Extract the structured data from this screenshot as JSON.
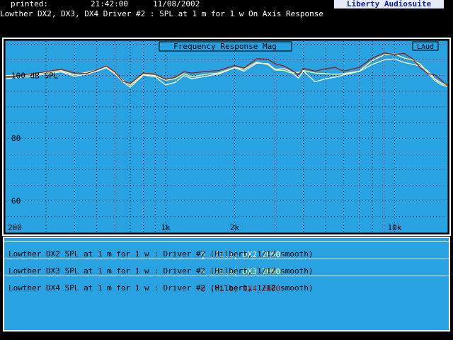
{
  "header": {
    "printed_label": "printed:",
    "time": "21:42:00",
    "date": "11/08/2002",
    "brand": "Liberty Audiosuite",
    "title": "Lowther DX2, DX3, DX4 Driver #2 : SPL at 1 m for 1 w On Axis Response"
  },
  "plot": {
    "title": "Frequency Response Mag",
    "badge": "LAud",
    "y_unit_label": "100 dB SPL"
  },
  "colors": {
    "background": "#000000",
    "plot_bg": "#29a2e2",
    "grid": "#000000",
    "dx2": "#ffffff",
    "dx3": "#ffff80",
    "dx4": "#a01818"
  },
  "chart_data": {
    "type": "line",
    "title": "Frequency Response Mag",
    "xscale": "log",
    "xlim": [
      200,
      17000
    ],
    "ylim": [
      50,
      111
    ],
    "x_tick_labels": [
      {
        "value": 200,
        "label": "200"
      },
      {
        "value": 1000,
        "label": "1k"
      },
      {
        "value": 2000,
        "label": "2k"
      },
      {
        "value": 10000,
        "label": "10k"
      }
    ],
    "y_tick_labels": [
      {
        "value": 100,
        "label": "100 dB SPL"
      },
      {
        "value": 80,
        "label": "80"
      },
      {
        "value": 60,
        "label": "60"
      }
    ],
    "series": [
      {
        "name": "DX2_2H00",
        "color": "#ffffff",
        "x": [
          200,
          250,
          300,
          350,
          400,
          450,
          500,
          550,
          600,
          650,
          700,
          800,
          900,
          1000,
          1100,
          1200,
          1300,
          1500,
          1700,
          2000,
          2200,
          2500,
          2800,
          3000,
          3300,
          3500,
          3800,
          4000,
          4500,
          5000,
          5500,
          6000,
          7000,
          8000,
          9000,
          10000,
          11000,
          12000,
          13000,
          14000,
          15000,
          16000,
          17000
        ],
        "y": [
          99,
          99.6,
          100.5,
          101.2,
          99.8,
          100.4,
          101.4,
          102.5,
          100.6,
          98,
          96.3,
          100.2,
          99.6,
          97,
          97.8,
          100,
          99,
          99.8,
          100.5,
          102.5,
          101.4,
          104,
          103.8,
          102,
          102.2,
          101.4,
          99.2,
          101.4,
          98,
          99,
          99.5,
          100.2,
          101.3,
          103.6,
          105,
          105.3,
          104.2,
          103.6,
          103,
          101.4,
          98.9,
          97.6,
          96.9
        ]
      },
      {
        "name": "DX3_2H00",
        "color": "#ffff80",
        "x": [
          200,
          250,
          300,
          350,
          400,
          450,
          500,
          550,
          600,
          650,
          700,
          800,
          900,
          1000,
          1100,
          1200,
          1300,
          1500,
          1700,
          2000,
          2200,
          2500,
          2800,
          3000,
          3300,
          3500,
          3800,
          4000,
          4500,
          5000,
          5500,
          6000,
          7000,
          8000,
          9000,
          10000,
          11000,
          12000,
          13000,
          14000,
          15000,
          16000,
          17000
        ],
        "y": [
          100,
          100.2,
          101,
          101.6,
          100.2,
          101,
          101.8,
          102.8,
          100.8,
          98.5,
          97,
          100.4,
          100,
          98.5,
          99,
          100.6,
          99.6,
          100.4,
          100.8,
          102.6,
          102,
          104.3,
          103.5,
          101.8,
          101.6,
          100.9,
          101,
          101.6,
          100.8,
          100.6,
          100.4,
          100.6,
          101.4,
          104.8,
          106.6,
          106.9,
          105.6,
          105,
          103.6,
          100.8,
          98.4,
          97.1,
          96.5
        ]
      },
      {
        "name": "DX4_2H00",
        "color": "#a01818",
        "x": [
          200,
          250,
          300,
          350,
          400,
          450,
          500,
          550,
          600,
          650,
          700,
          800,
          900,
          1000,
          1100,
          1200,
          1300,
          1500,
          1700,
          2000,
          2200,
          2500,
          2800,
          3000,
          3300,
          3500,
          3800,
          4000,
          4500,
          5000,
          5500,
          6000,
          7000,
          8000,
          9000,
          10000,
          11000,
          12000,
          13000,
          14000,
          15000,
          16000,
          17000
        ],
        "y": [
          99.5,
          100.4,
          101.2,
          102,
          100.8,
          100.6,
          101.8,
          103,
          101.1,
          98.2,
          97.5,
          100.8,
          100.4,
          98.8,
          99.4,
          101.2,
          100.8,
          101.3,
          101.6,
          103.2,
          102.4,
          105.4,
          105.2,
          103.8,
          103,
          102,
          100.3,
          102.3,
          101.4,
          102.2,
          102.6,
          101.4,
          102.6,
          105.6,
          107.2,
          106.7,
          107.1,
          105.3,
          102.4,
          100.6,
          100.2,
          98.5,
          96.8
        ]
      }
    ]
  },
  "legend": [
    {
      "marker": "◊",
      "file_line": "(file) DX2_2H00:",
      "desc": "Lowther DX2 SPL at 1 m for 1 w : Driver #2 (Hilbert, 1/12 smooth)",
      "color": "#ffffff"
    },
    {
      "marker": "×",
      "file_line": "(file) DX3_2H00:",
      "desc": "Lowther DX3 SPL at 1 m for 1 w : Driver #2 (Hilbert, 1/12 smooth)",
      "color": "#ffff80"
    },
    {
      "marker": "○",
      "file_line": "(file) DX4_2H00:",
      "desc": "Lowther DX4 SPL at 1 m for 1 w : Driver #2 (Hilbert, 1/12 smooth)",
      "color": "#a01818"
    }
  ]
}
